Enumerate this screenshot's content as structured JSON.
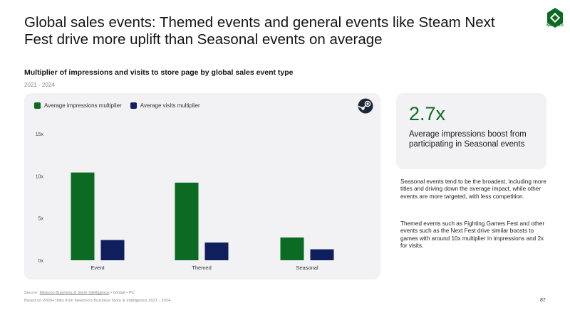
{
  "header": {
    "title": "Global sales events: Themed events and general events like Steam Next Fest drive more uplift than Seasonal events on average",
    "logo_text": "NEWZOO"
  },
  "chart_section": {
    "subtitle": "Multiplier of impressions and visits to store page by global sales event type",
    "years": "2021 - 2024"
  },
  "chart_data": {
    "type": "bar",
    "title": "Multiplier of impressions and visits to store page by global sales event type",
    "categories": [
      "Event",
      "Themed",
      "Seasonal"
    ],
    "series": [
      {
        "name": "Average impressions multiplier",
        "color": "#0b6b22",
        "values": [
          10.4,
          9.2,
          2.7
        ]
      },
      {
        "name": "Average visits multiplier",
        "color": "#0f1f5e",
        "values": [
          2.4,
          2.1,
          1.3
        ]
      }
    ],
    "yticks": [
      "0x",
      "5x",
      "10x",
      "15x"
    ],
    "ytick_values": [
      0,
      5,
      10,
      15
    ],
    "ylim": [
      0,
      15
    ],
    "xlabel": "",
    "ylabel": "",
    "grid": false,
    "legend": "top-left"
  },
  "highlight": {
    "value": "2.7x",
    "label": "Average impressions boost from participating in Seasonal events"
  },
  "notes": {
    "p1": "Seasonal events tend to be the broadest, including more titles and driving down the average impact, while other events are more targeted, with less competition.",
    "p2": "Themed events such as Fighting Games Fest and other events such as the Next Fest drive similar boosts to games with around 10x multiplier in impressions and 2x for visits."
  },
  "footer": {
    "source_prefix": "Source: ",
    "source_link": "Newzoo Business & Store Intelligence",
    "source_suffix": " • Global • PC",
    "based_on": "Based on 2000+ titles from Newzoo's Business Store & Intelligence 2021 - 2024",
    "page_number": "87"
  },
  "colors": {
    "impressions": "#0b6b22",
    "visits": "#0f1f5e",
    "panel": "#f2f2f4"
  }
}
